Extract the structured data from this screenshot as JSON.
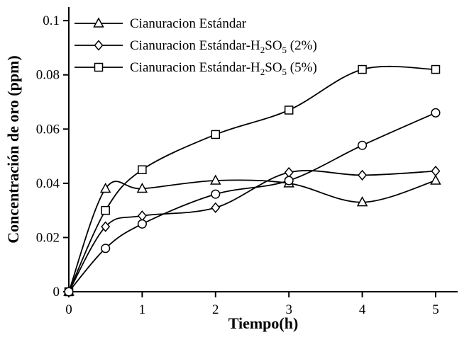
{
  "chart_data": {
    "type": "line",
    "title": "",
    "xlabel": "Tiempo(h)",
    "ylabel": "Concentración de oro (ppm)",
    "x": [
      0,
      0.5,
      1,
      2,
      3,
      4,
      5
    ],
    "series": [
      {
        "name": "Cianuracion Estándar",
        "marker": "triangle",
        "in_legend": true,
        "values": [
          0,
          0.038,
          0.038,
          0.041,
          0.04,
          0.033,
          0.041
        ]
      },
      {
        "name": "Cianuracion Estándar-H₂SO₅ (2%)",
        "marker": "diamond",
        "in_legend": true,
        "values": [
          0,
          0.024,
          0.028,
          0.031,
          0.044,
          0.043,
          0.0445
        ]
      },
      {
        "name": "Cianuracion Estándar-H₂SO₅ (5%)",
        "marker": "square",
        "in_legend": true,
        "values": [
          0,
          0.03,
          0.045,
          0.058,
          0.067,
          0.082,
          0.082
        ]
      },
      {
        "name": "",
        "marker": "circle",
        "in_legend": false,
        "values": [
          0,
          0.016,
          0.025,
          0.036,
          0.041,
          0.054,
          0.066
        ]
      }
    ],
    "xlim": [
      0,
      5.3
    ],
    "ylim": [
      0,
      0.105
    ],
    "xticks": [
      0,
      1,
      2,
      3,
      4,
      5
    ],
    "xtick_labels": [
      "0",
      "1",
      "2",
      "3",
      "4",
      "5"
    ],
    "yticks": [
      0,
      0.02,
      0.04,
      0.06,
      0.08,
      0.1
    ],
    "ytick_labels": [
      "0",
      "0.02",
      "0.04",
      "0.06",
      "0.08",
      "0.1"
    ],
    "legend_position": "top-left",
    "grid": false,
    "line_color": "#000000",
    "marker_fill": "#ffffff",
    "background": "#ffffff"
  }
}
